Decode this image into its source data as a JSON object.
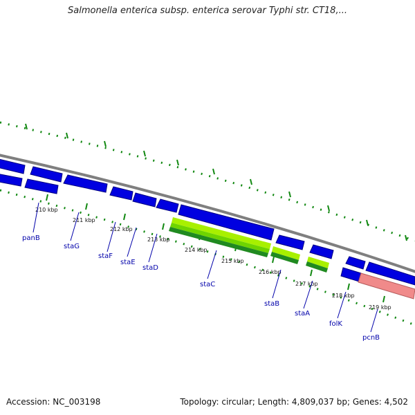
{
  "title": "Salmonella enterica subsp. enterica serovar Typhi str. CT18,...",
  "footer": {
    "accession": "Accession: NC_003198",
    "stats": "Topology: circular; Length: 4,809,037 bp; Genes: 4,502"
  },
  "colors": {
    "backbone": "#7f7f7f",
    "cds": "#0000e0",
    "cds_dark": "#000080",
    "rrna_light": "#a8f000",
    "rrna_dark": "#208a20",
    "pink_feature": "#f08a8a",
    "tick_green": "#118811",
    "label_blue": "#0000aa"
  },
  "kbp_ticks": [
    "210 kbp",
    "211 kbp",
    "212 kbp",
    "213 kbp",
    "214 kbp",
    "215 kbp",
    "216 kbp",
    "217 kbp",
    "218 kbp",
    "219 kbp"
  ],
  "genes": [
    "panB",
    "staG",
    "staF",
    "staE",
    "staD",
    "staC",
    "staB",
    "staA",
    "folK",
    "pcnB"
  ]
}
